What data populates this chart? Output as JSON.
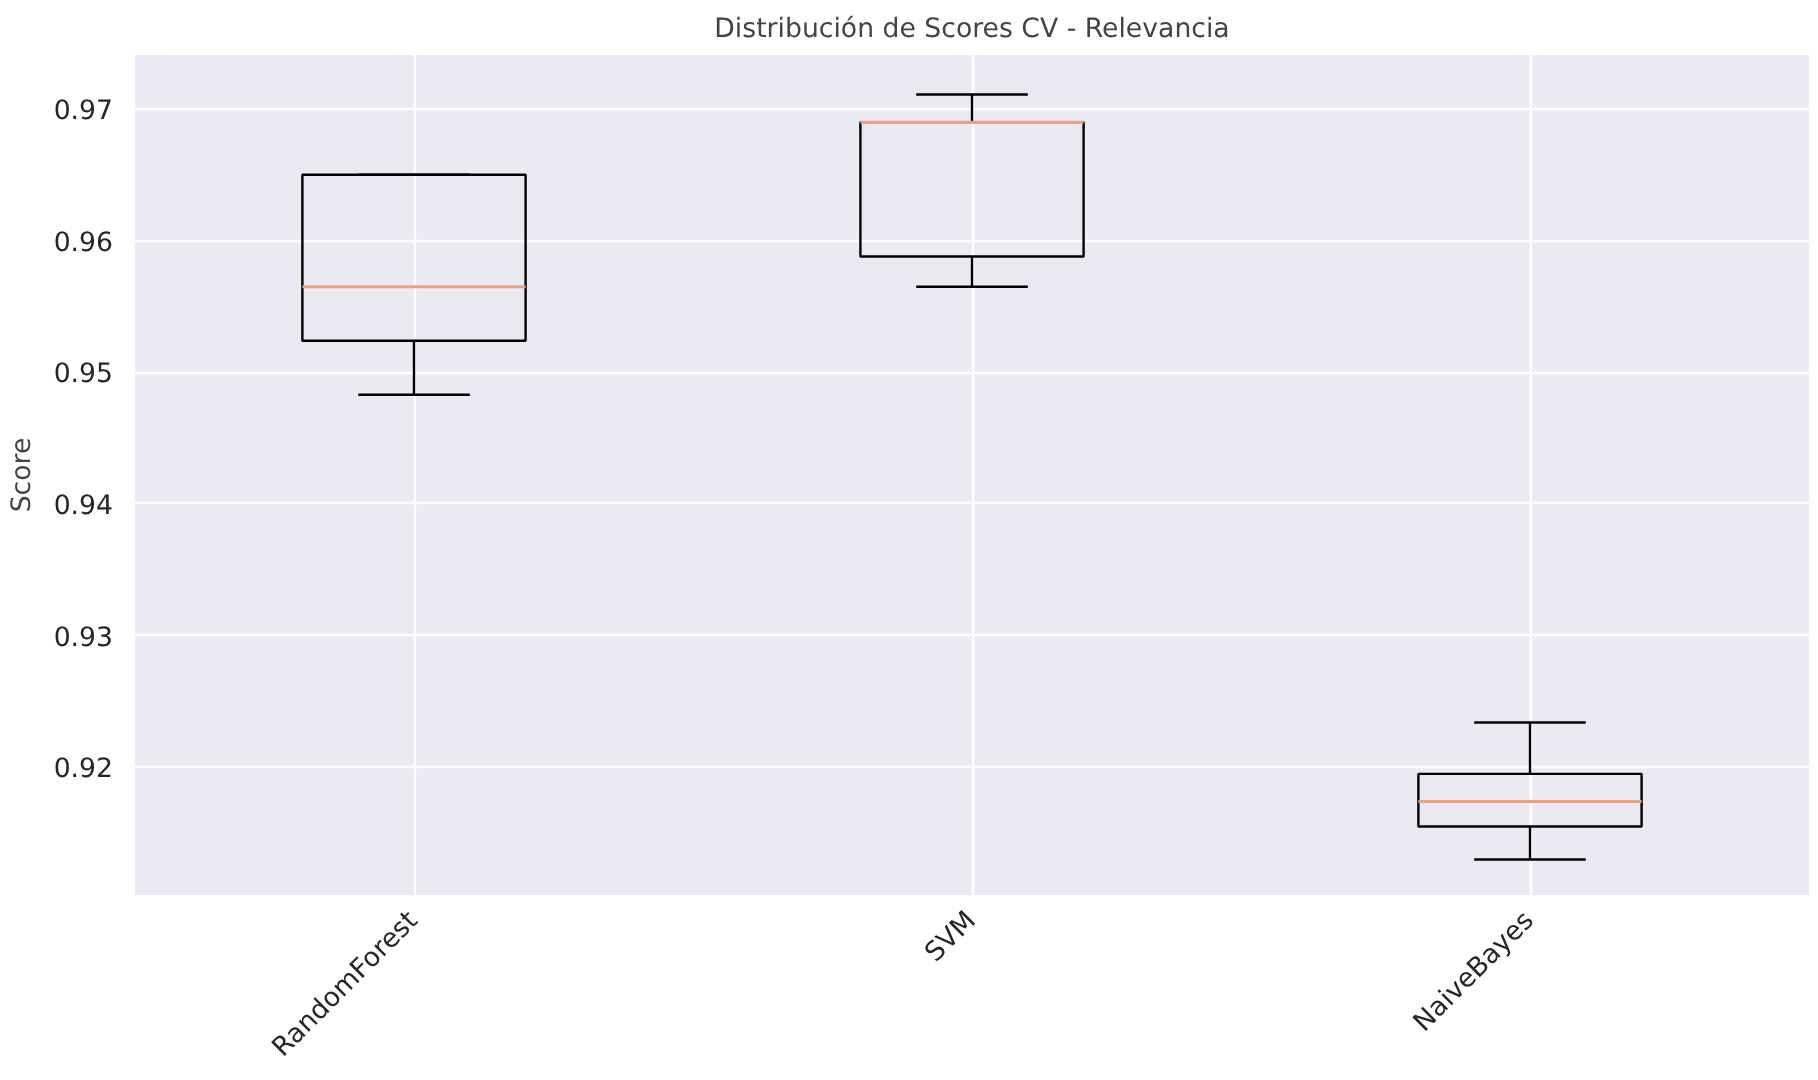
{
  "chart_data": {
    "type": "box",
    "title": "Distribución de Scores CV - Relevancia",
    "ylabel": "Score",
    "categories": [
      "RandomForest",
      "SVM",
      "NaiveBayes"
    ],
    "boxes": [
      {
        "low": 0.9483,
        "q1": 0.9524,
        "median": 0.9565,
        "q3": 0.965,
        "high": 0.965
      },
      {
        "low": 0.9565,
        "q1": 0.9588,
        "median": 0.969,
        "q3": 0.969,
        "high": 0.9711
      },
      {
        "low": 0.913,
        "q1": 0.9155,
        "median": 0.9174,
        "q3": 0.9195,
        "high": 0.9234
      }
    ],
    "ylim": [
      0.9103,
      0.9741
    ],
    "yticks": [
      0.92,
      0.93,
      0.94,
      0.95,
      0.96,
      0.97
    ],
    "grid": true
  }
}
